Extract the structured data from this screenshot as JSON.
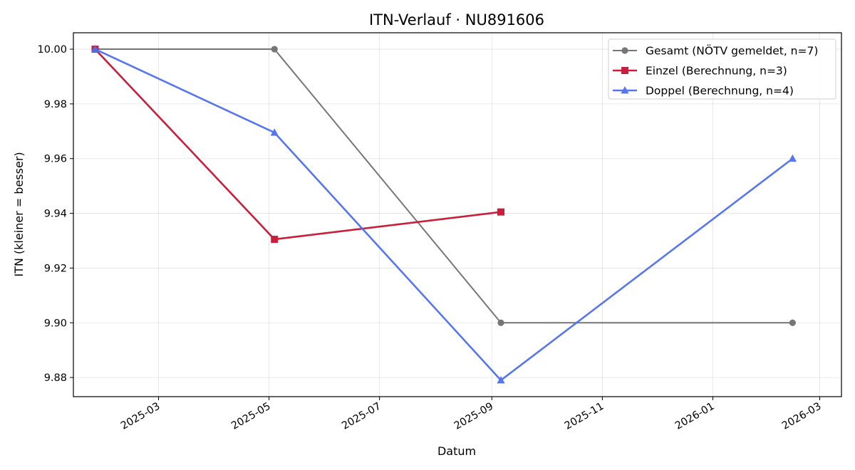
{
  "chart_data": {
    "type": "line",
    "title": "ITN-Verlauf · NU891606",
    "xlabel": "Datum",
    "ylabel": "ITN  (kleiner = besser)",
    "xlim": [
      "2025-01-13",
      "2026-03-13"
    ],
    "ylim": [
      9.873,
      10.006
    ],
    "grid": true,
    "legend_position": "top-right",
    "x_ticks": [
      "2025-03",
      "2025-05",
      "2025-07",
      "2025-09",
      "2025-11",
      "2026-01",
      "2026-03"
    ],
    "y_ticks": [
      "9.88",
      "9.90",
      "9.92",
      "9.94",
      "9.96",
      "9.98",
      "10.00"
    ],
    "series": [
      {
        "name": "Gesamt (NÖTV gemeldet, n=7)",
        "color": "#555555",
        "marker": "circle",
        "x": [
          "2025-01-25",
          "2025-05-04",
          "2025-09-06",
          "2026-02-14"
        ],
        "y": [
          10.0,
          10.0,
          9.9,
          9.9
        ]
      },
      {
        "name": "Einzel (Berechnung, n=3)",
        "color": "#c8203c",
        "marker": "square",
        "x": [
          "2025-01-25",
          "2025-05-04",
          "2025-09-06"
        ],
        "y": [
          10.0,
          9.9305,
          9.9405
        ]
      },
      {
        "name": "Doppel (Berechnung, n=4)",
        "color": "#4f6fee",
        "marker": "triangle",
        "x": [
          "2025-01-25",
          "2025-05-04",
          "2025-09-06",
          "2026-02-14"
        ],
        "y": [
          10.0,
          9.9695,
          9.879,
          9.96
        ]
      }
    ]
  }
}
